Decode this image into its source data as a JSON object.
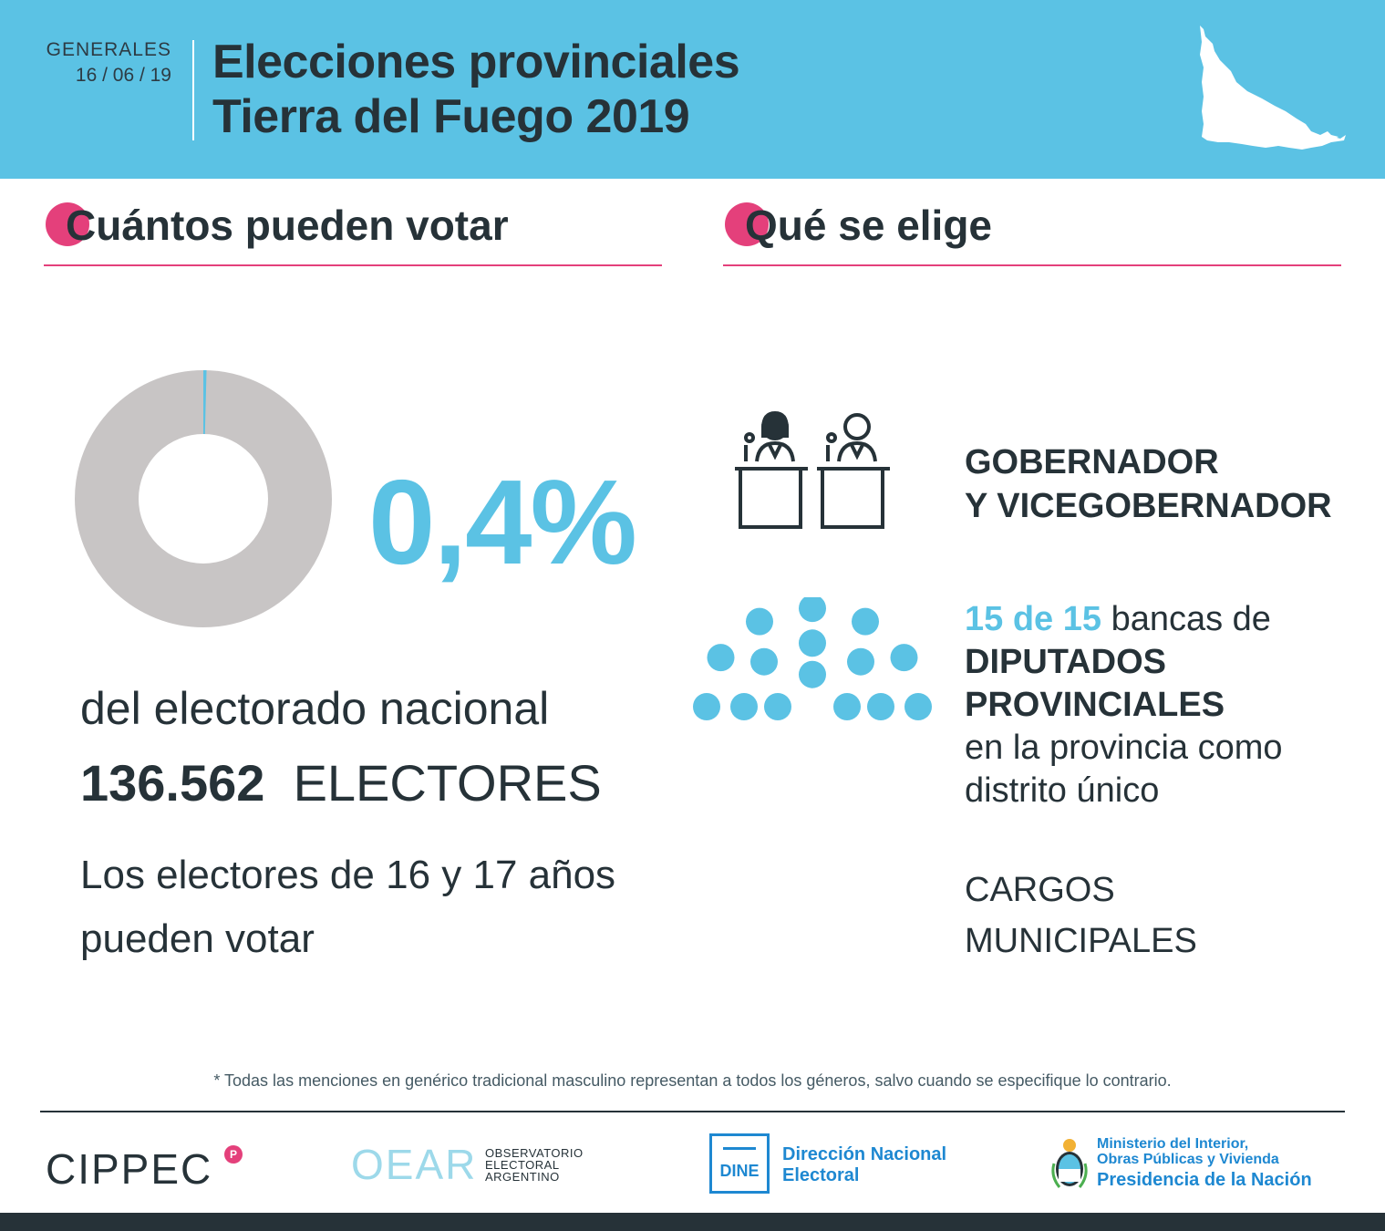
{
  "header": {
    "kind": "GENERALES",
    "date": "16 / 06 / 19",
    "title_line1": "Elecciones provinciales",
    "title_line2": "Tierra del Fuego 2019"
  },
  "left_section": {
    "title": "Cuántos pueden votar",
    "percent_label": "0,4%",
    "percent_value": 0.4,
    "electorado_text": "del electorado nacional",
    "electores_number": "136.562",
    "electores_label": "ELECTORES",
    "jovenes_text": "Los electores de 16 y 17 años pueden votar"
  },
  "right_section": {
    "title": "Qué se elige",
    "gobernador_line1": "GOBERNADOR",
    "gobernador_line2": "Y VICEGOBERNADOR",
    "bancas_number": "15 de 15",
    "bancas_text": "bancas de",
    "diputados_line1": "DIPUTADOS",
    "diputados_line2": "PROVINCIALES",
    "provincia_line1": "en la provincia como",
    "provincia_line2": "distrito único",
    "cargos_line1": "CARGOS",
    "cargos_line2": "MUNICIPALES",
    "seat_count": 15
  },
  "footnote": "* Todas las menciones en genérico tradicional masculino representan a todos los géneros, salvo cuando se especifique lo contrario.",
  "logos": {
    "cippec": "CIPPEC",
    "cippec_badge": "P",
    "oear": "OEAR",
    "oear_sub1": "OBSERVATORIO",
    "oear_sub2": "ELECTORAL",
    "oear_sub3": "ARGENTINO",
    "dine": "DINE",
    "dine_name1": "Dirección Nacional",
    "dine_name2": "Electoral",
    "ministerio1": "Ministerio del Interior,",
    "ministerio2": "Obras Públicas y Vivienda",
    "presidencia": "Presidencia de la Nación"
  },
  "colors": {
    "accent_blue": "#5bc2e4",
    "accent_pink": "#e4407b",
    "donut_gray": "#c8c5c5",
    "text_dark": "#263238",
    "logo_blue": "#1e88d1"
  }
}
